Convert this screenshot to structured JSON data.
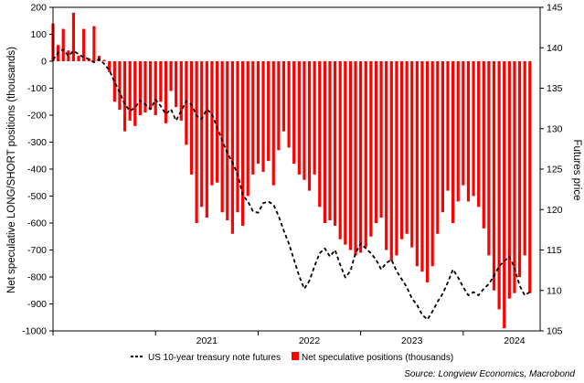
{
  "chart_data": {
    "type": "bar+line",
    "left_axis": {
      "label": "Net speculative LONG/SHORT positions (thousands)",
      "range": [
        -1000,
        200
      ],
      "ticks": [
        200,
        100,
        0,
        -100,
        -200,
        -300,
        -400,
        -500,
        -600,
        -700,
        -800,
        -900,
        -1000
      ]
    },
    "right_axis": {
      "label": "Futures price",
      "range": [
        105,
        145
      ],
      "ticks": [
        145,
        140,
        135,
        130,
        125,
        120,
        115,
        110,
        105
      ]
    },
    "x_axis": {
      "range": [
        2020.0,
        2024.75
      ],
      "tick_labels": [
        {
          "label": "2021",
          "year": 2021
        },
        {
          "label": "2022",
          "year": 2022
        },
        {
          "label": "2023",
          "year": 2023
        },
        {
          "label": "2024",
          "year": 2024
        }
      ]
    },
    "grid": "off",
    "legend_position": "bottom",
    "source": "Source: Longview Economics, Macrobond",
    "series": [
      {
        "name": "Net speculative positions (thousands)",
        "type": "bar",
        "axis": "left",
        "color": "#ff0000",
        "points": [
          [
            2020.0,
            140
          ],
          [
            2020.05,
            60
          ],
          [
            2020.1,
            120
          ],
          [
            2020.15,
            40
          ],
          [
            2020.2,
            180
          ],
          [
            2020.25,
            20
          ],
          [
            2020.3,
            120
          ],
          [
            2020.35,
            10
          ],
          [
            2020.4,
            130
          ],
          [
            2020.45,
            20
          ],
          [
            2020.5,
            5
          ],
          [
            2020.55,
            -40
          ],
          [
            2020.6,
            -150
          ],
          [
            2020.65,
            -180
          ],
          [
            2020.7,
            -260
          ],
          [
            2020.75,
            -220
          ],
          [
            2020.8,
            -240
          ],
          [
            2020.85,
            -200
          ],
          [
            2020.9,
            -190
          ],
          [
            2020.95,
            -180
          ],
          [
            2021.0,
            -200
          ],
          [
            2021.05,
            -150
          ],
          [
            2021.1,
            -230
          ],
          [
            2021.15,
            -110
          ],
          [
            2021.2,
            -170
          ],
          [
            2021.25,
            -220
          ],
          [
            2021.3,
            -310
          ],
          [
            2021.35,
            -420
          ],
          [
            2021.4,
            -600
          ],
          [
            2021.45,
            -540
          ],
          [
            2021.5,
            -580
          ],
          [
            2021.55,
            -460
          ],
          [
            2021.6,
            -450
          ],
          [
            2021.65,
            -560
          ],
          [
            2021.7,
            -590
          ],
          [
            2021.75,
            -640
          ],
          [
            2021.8,
            -560
          ],
          [
            2021.85,
            -610
          ],
          [
            2021.9,
            -500
          ],
          [
            2021.95,
            -420
          ],
          [
            2022.0,
            -380
          ],
          [
            2022.05,
            -410
          ],
          [
            2022.1,
            -370
          ],
          [
            2022.15,
            -460
          ],
          [
            2022.2,
            -330
          ],
          [
            2022.25,
            -260
          ],
          [
            2022.3,
            -320
          ],
          [
            2022.35,
            -380
          ],
          [
            2022.4,
            -420
          ],
          [
            2022.45,
            -440
          ],
          [
            2022.5,
            -480
          ],
          [
            2022.55,
            -420
          ],
          [
            2022.6,
            -540
          ],
          [
            2022.65,
            -600
          ],
          [
            2022.7,
            -590
          ],
          [
            2022.75,
            -610
          ],
          [
            2022.8,
            -660
          ],
          [
            2022.85,
            -680
          ],
          [
            2022.9,
            -700
          ],
          [
            2022.95,
            -720
          ],
          [
            2023.0,
            -710
          ],
          [
            2023.05,
            -690
          ],
          [
            2023.1,
            -650
          ],
          [
            2023.15,
            -600
          ],
          [
            2023.2,
            -580
          ],
          [
            2023.25,
            -700
          ],
          [
            2023.3,
            -740
          ],
          [
            2023.35,
            -720
          ],
          [
            2023.4,
            -660
          ],
          [
            2023.45,
            -640
          ],
          [
            2023.5,
            -690
          ],
          [
            2023.55,
            -760
          ],
          [
            2023.6,
            -780
          ],
          [
            2023.65,
            -820
          ],
          [
            2023.7,
            -760
          ],
          [
            2023.75,
            -640
          ],
          [
            2023.8,
            -560
          ],
          [
            2023.85,
            -480
          ],
          [
            2023.9,
            -600
          ],
          [
            2023.95,
            -520
          ],
          [
            2024.0,
            -460
          ],
          [
            2024.05,
            -520
          ],
          [
            2024.1,
            -500
          ],
          [
            2024.15,
            -540
          ],
          [
            2024.2,
            -620
          ],
          [
            2024.25,
            -720
          ],
          [
            2024.3,
            -850
          ],
          [
            2024.35,
            -920
          ],
          [
            2024.4,
            -990
          ],
          [
            2024.45,
            -880
          ],
          [
            2024.5,
            -860
          ],
          [
            2024.55,
            -800
          ],
          [
            2024.6,
            -720
          ],
          [
            2024.65,
            -860
          ]
        ]
      },
      {
        "name": "US 10-year treasury note futures",
        "type": "line",
        "axis": "right",
        "color": "#000000",
        "style": "dashed",
        "points": [
          [
            2020.0,
            138.5
          ],
          [
            2020.05,
            139.4
          ],
          [
            2020.1,
            139.8
          ],
          [
            2020.15,
            139.0
          ],
          [
            2020.2,
            139.6
          ],
          [
            2020.25,
            139.2
          ],
          [
            2020.3,
            138.8
          ],
          [
            2020.35,
            138.6
          ],
          [
            2020.4,
            138.2
          ],
          [
            2020.45,
            138.6
          ],
          [
            2020.5,
            138.0
          ],
          [
            2020.55,
            137.2
          ],
          [
            2020.6,
            135.8
          ],
          [
            2020.65,
            134.5
          ],
          [
            2020.7,
            133.0
          ],
          [
            2020.75,
            132.2
          ],
          [
            2020.8,
            132.6
          ],
          [
            2020.85,
            133.5
          ],
          [
            2020.9,
            133.0
          ],
          [
            2020.95,
            132.4
          ],
          [
            2021.0,
            133.6
          ],
          [
            2021.05,
            132.8
          ],
          [
            2021.1,
            131.8
          ],
          [
            2021.15,
            132.4
          ],
          [
            2021.2,
            131.0
          ],
          [
            2021.25,
            132.2
          ],
          [
            2021.3,
            133.4
          ],
          [
            2021.35,
            133.0
          ],
          [
            2021.4,
            131.6
          ],
          [
            2021.45,
            131.2
          ],
          [
            2021.5,
            132.4
          ],
          [
            2021.55,
            131.8
          ],
          [
            2021.6,
            130.2
          ],
          [
            2021.65,
            128.5
          ],
          [
            2021.7,
            127.0
          ],
          [
            2021.75,
            125.8
          ],
          [
            2021.8,
            124.4
          ],
          [
            2021.85,
            121.8
          ],
          [
            2021.9,
            121.0
          ],
          [
            2021.95,
            119.8
          ],
          [
            2022.0,
            119.6
          ],
          [
            2022.05,
            120.8
          ],
          [
            2022.1,
            121.0
          ],
          [
            2022.15,
            120.6
          ],
          [
            2022.2,
            119.2
          ],
          [
            2022.25,
            117.4
          ],
          [
            2022.3,
            115.8
          ],
          [
            2022.35,
            113.8
          ],
          [
            2022.4,
            111.8
          ],
          [
            2022.45,
            110.2
          ],
          [
            2022.5,
            111.2
          ],
          [
            2022.55,
            113.0
          ],
          [
            2022.6,
            114.6
          ],
          [
            2022.65,
            115.2
          ],
          [
            2022.7,
            114.2
          ],
          [
            2022.75,
            115.0
          ],
          [
            2022.8,
            113.2
          ],
          [
            2022.85,
            111.6
          ],
          [
            2022.9,
            112.4
          ],
          [
            2022.95,
            114.6
          ],
          [
            2023.0,
            115.8
          ],
          [
            2023.05,
            115.2
          ],
          [
            2023.1,
            114.6
          ],
          [
            2023.15,
            113.8
          ],
          [
            2023.2,
            112.6
          ],
          [
            2023.25,
            113.4
          ],
          [
            2023.3,
            113.8
          ],
          [
            2023.35,
            112.4
          ],
          [
            2023.4,
            111.4
          ],
          [
            2023.45,
            110.4
          ],
          [
            2023.5,
            109.0
          ],
          [
            2023.55,
            108.2
          ],
          [
            2023.6,
            107.0
          ],
          [
            2023.65,
            106.4
          ],
          [
            2023.7,
            107.4
          ],
          [
            2023.75,
            108.6
          ],
          [
            2023.8,
            109.6
          ],
          [
            2023.85,
            111.0
          ],
          [
            2023.9,
            112.6
          ],
          [
            2023.95,
            111.6
          ],
          [
            2024.0,
            110.4
          ],
          [
            2024.05,
            109.4
          ],
          [
            2024.1,
            109.8
          ],
          [
            2024.15,
            109.4
          ],
          [
            2024.2,
            110.2
          ],
          [
            2024.25,
            110.8
          ],
          [
            2024.3,
            111.8
          ],
          [
            2024.35,
            113.0
          ],
          [
            2024.4,
            113.6
          ],
          [
            2024.45,
            114.2
          ],
          [
            2024.5,
            112.8
          ],
          [
            2024.55,
            110.6
          ],
          [
            2024.6,
            109.4
          ],
          [
            2024.65,
            109.8
          ]
        ]
      }
    ]
  }
}
